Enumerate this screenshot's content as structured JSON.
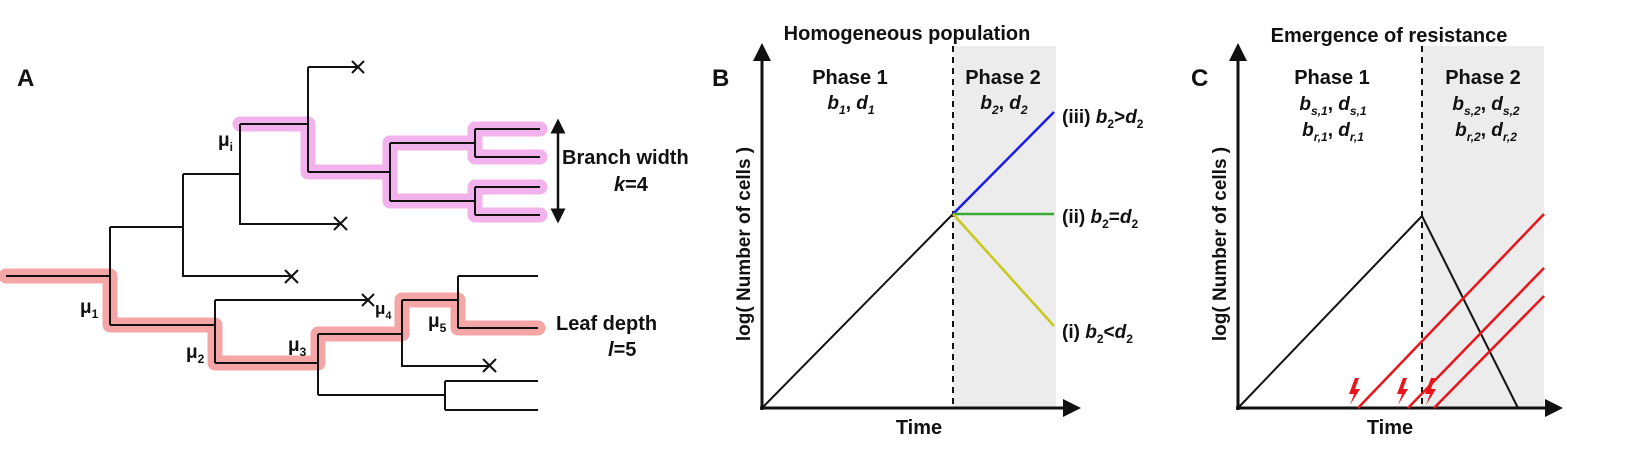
{
  "panel_a": {
    "letter": "A",
    "mutations": [
      "μ",
      "μ",
      "μ",
      "μ",
      "μ",
      "μ"
    ],
    "mutation_subscripts": [
      "1",
      "2",
      "3",
      "4",
      "5",
      "i"
    ],
    "branch_width_label": "Branch width",
    "branch_width_var": "k",
    "branch_width_value": "=4",
    "leaf_depth_label": "Leaf depth",
    "leaf_depth_var": "l",
    "leaf_depth_value": "=5",
    "highlight_colors": {
      "pink": "#f2b2ec",
      "red": "#f4a6a6"
    }
  },
  "panel_b": {
    "letter": "B",
    "title": "Homogeneous population",
    "phase1": "Phase 1",
    "phase2": "Phase 2",
    "phase1_params": "b1, d1",
    "phase2_params": "b2, d2",
    "ylabel": "log( Number of cells )",
    "xlabel": "Time",
    "line_iii": "(iii) b2>d2",
    "line_ii": "(ii) b2=d2",
    "line_i": "(i) b2<d2",
    "colors": {
      "iii": "#1a1aee",
      "ii": "#3aaa35",
      "i": "#c8c81a",
      "phase2_bg": "#ececec"
    }
  },
  "panel_c": {
    "letter": "C",
    "title": "Emergence of resistance",
    "phase1": "Phase 1",
    "phase2": "Phase 2",
    "phase1_params_s": "bs,1, ds,1",
    "phase1_params_r": "br,1, dr,1",
    "phase2_params_s": "bs,2, ds,2",
    "phase2_params_r": "br,2, dr,2",
    "ylabel": "log( Number of cells )",
    "xlabel": "Time",
    "colors": {
      "resistant": "#e8161b",
      "phase2_bg": "#ececec"
    }
  }
}
